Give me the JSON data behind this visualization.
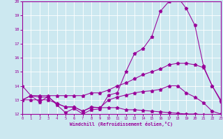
{
  "line1_x": [
    0,
    1,
    2,
    3,
    4,
    5,
    6,
    7,
    8,
    9,
    10,
    11,
    12,
    13,
    14,
    15,
    16,
    17,
    18,
    19,
    20,
    21,
    22,
    23
  ],
  "line1_y": [
    14.0,
    13.3,
    12.85,
    13.25,
    12.65,
    12.1,
    12.4,
    12.0,
    12.3,
    12.35,
    13.35,
    13.5,
    15.0,
    16.3,
    16.65,
    17.5,
    19.3,
    20.0,
    20.3,
    19.5,
    18.3,
    15.4,
    14.0,
    12.9
  ],
  "line2_x": [
    0,
    1,
    2,
    3,
    4,
    5,
    6,
    7,
    8,
    9,
    10,
    11,
    12,
    13,
    14,
    15,
    16,
    17,
    18,
    19,
    20,
    21,
    22,
    23
  ],
  "line2_y": [
    13.0,
    13.3,
    13.3,
    13.3,
    13.3,
    13.3,
    13.3,
    13.3,
    13.5,
    13.5,
    13.7,
    14.0,
    14.2,
    14.5,
    14.8,
    15.0,
    15.2,
    15.5,
    15.6,
    15.6,
    15.5,
    15.3,
    14.0,
    13.0
  ],
  "line3_x": [
    0,
    1,
    2,
    3,
    4,
    5,
    6,
    7,
    8,
    9,
    10,
    11,
    12,
    13,
    14,
    15,
    16,
    17,
    18,
    19,
    20,
    21,
    22,
    23
  ],
  "line3_y": [
    13.0,
    13.3,
    13.2,
    13.2,
    12.75,
    12.5,
    12.5,
    12.2,
    12.5,
    12.45,
    13.0,
    13.2,
    13.35,
    13.5,
    13.6,
    13.65,
    13.75,
    14.0,
    14.0,
    13.5,
    13.2,
    12.8,
    12.2,
    12.0
  ],
  "line4_x": [
    0,
    1,
    2,
    3,
    4,
    5,
    6,
    7,
    8,
    9,
    10,
    11,
    12,
    13,
    14,
    15,
    16,
    17,
    18,
    19,
    20,
    21,
    22,
    23
  ],
  "line4_y": [
    13.0,
    13.0,
    13.0,
    13.0,
    12.75,
    12.5,
    12.5,
    12.2,
    12.45,
    12.45,
    12.45,
    12.45,
    12.3,
    12.3,
    12.25,
    12.2,
    12.15,
    12.1,
    12.05,
    12.0,
    12.0,
    11.95,
    11.9,
    11.8
  ],
  "line_color": "#990099",
  "bg_color": "#cce8f0",
  "grid_color": "#ffffff",
  "xlabel": "Windchill (Refroidissement éolien,°C)",
  "ylim": [
    12,
    20
  ],
  "xlim": [
    0,
    23
  ],
  "yticks": [
    12,
    13,
    14,
    15,
    16,
    17,
    18,
    19,
    20
  ],
  "xticks": [
    0,
    1,
    2,
    3,
    4,
    5,
    6,
    7,
    8,
    9,
    10,
    11,
    12,
    13,
    14,
    15,
    16,
    17,
    18,
    19,
    20,
    21,
    22,
    23
  ]
}
